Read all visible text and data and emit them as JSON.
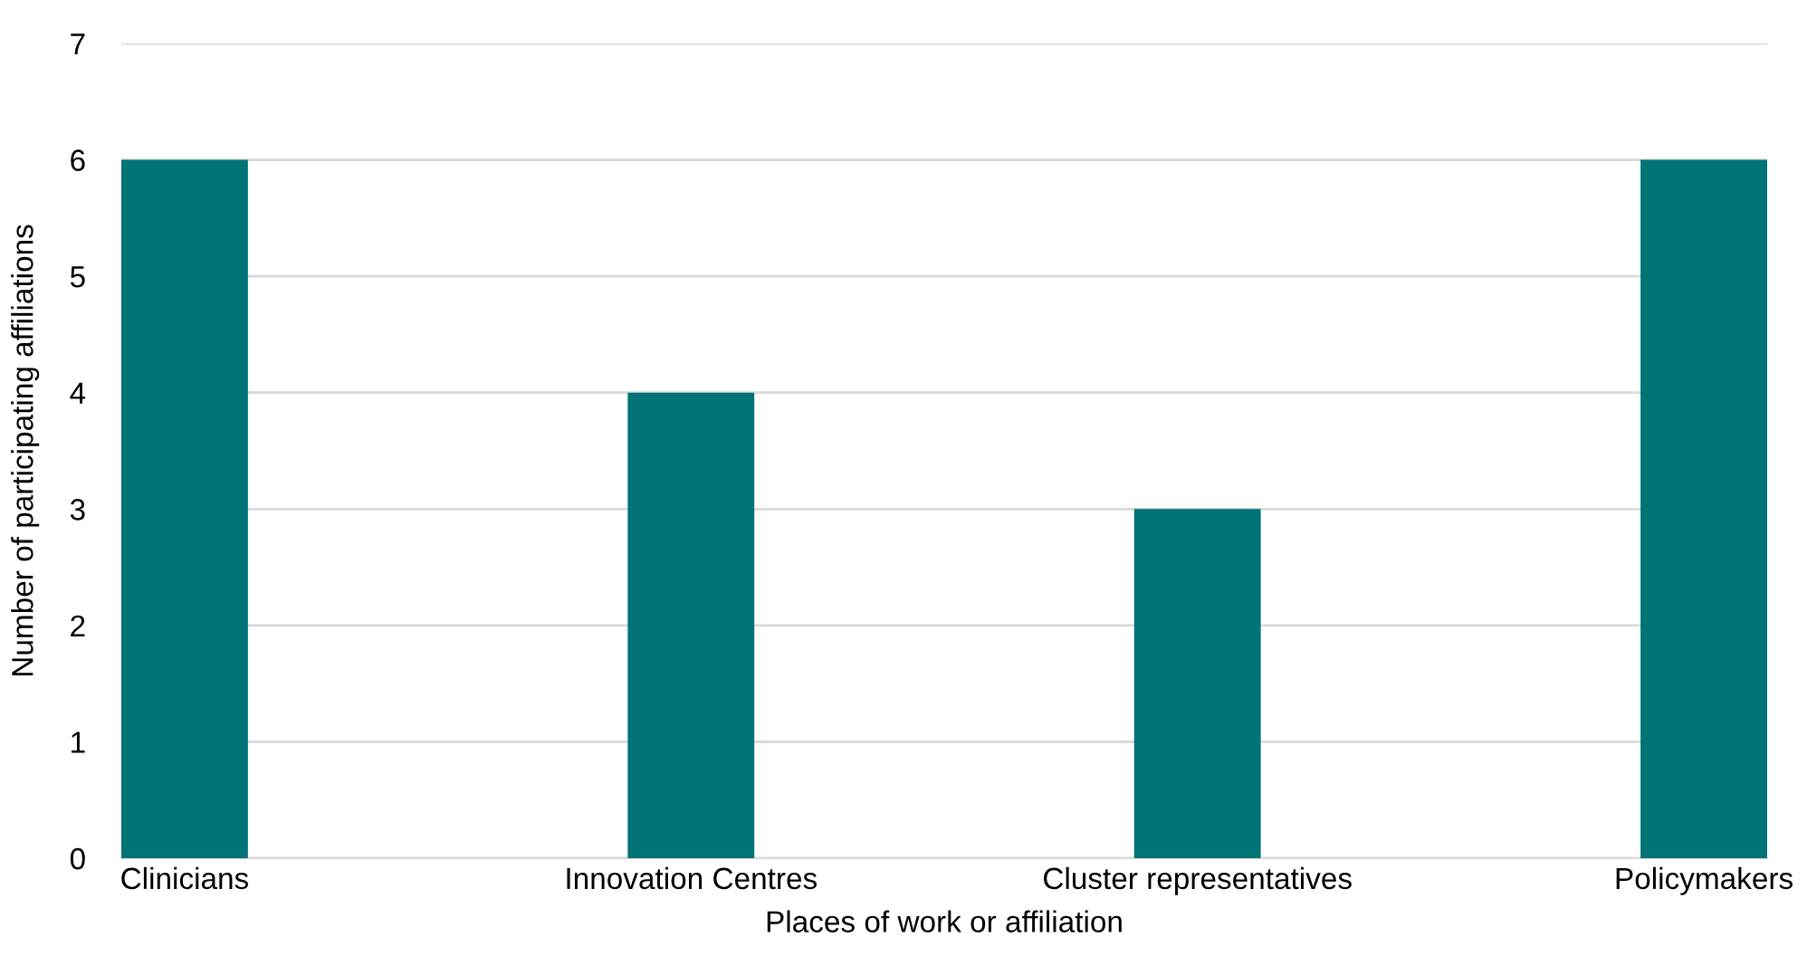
{
  "chart_data": {
    "type": "bar",
    "xlabel": "Places of work or affiliation",
    "ylabel": "Number of participating affiliations",
    "categories": [
      "Clinicians",
      "Innovation Centres",
      "Cluster representatives",
      "Policymakers"
    ],
    "values": [
      6,
      4,
      3,
      6
    ],
    "color": "#007377",
    "ylim": [
      0,
      7
    ],
    "yticks": [
      0,
      1,
      2,
      3,
      4,
      5,
      6,
      7
    ],
    "grid": "y",
    "legend": false
  }
}
